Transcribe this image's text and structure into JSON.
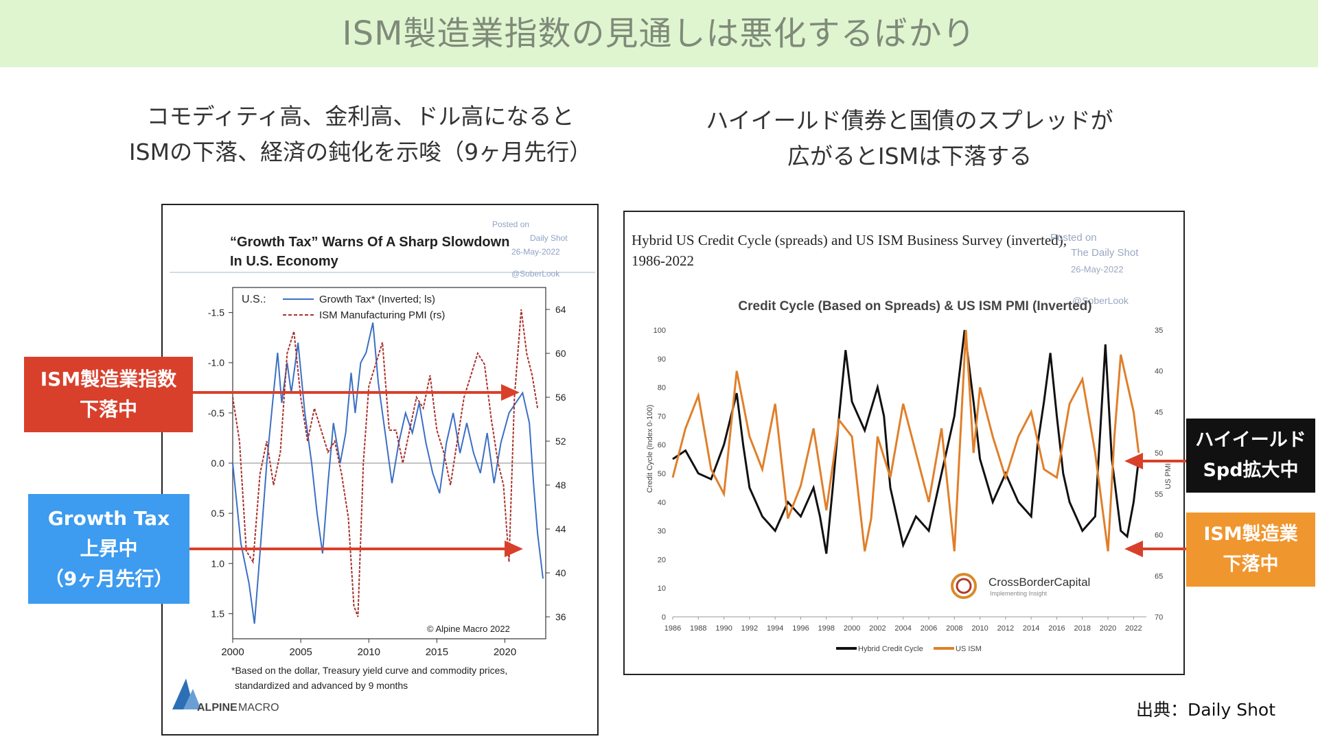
{
  "header": {
    "title": "ISM製造業指数の見通しは悪化するばかり"
  },
  "left_caption": {
    "line1": "コモディティ高、金利高、ドル高になると",
    "line2": "ISMの下落、経済の鈍化を示唆（9ヶ月先行）"
  },
  "right_caption": {
    "line1": "ハイイールド債券と国債のスプレッドが",
    "line2": "広がるとISMは下落する"
  },
  "callouts": {
    "ism_left": {
      "line1": "ISM製造業指数",
      "line2": "下落中",
      "color": "#d9402b"
    },
    "growth_tax": {
      "line1": "Growth Tax",
      "line2": "上昇中",
      "line3": "（9ヶ月先行）",
      "color": "#3d9bf0"
    },
    "high_yield": {
      "line1": "ハイイールド",
      "line2": "Spd拡大中",
      "color": "#111111"
    },
    "ism_right": {
      "line1": "ISM製造業",
      "line2": "下落中",
      "color": "#f0962e"
    },
    "arrow_color": "#d9402b"
  },
  "source": "出典：Daily Shot",
  "chart_data": [
    {
      "type": "line",
      "title": "“Growth Tax” Warns Of A Sharp Slowdown",
      "title_line2": "In U.S. Economy",
      "legend_prefix": "U.S.:",
      "watermark": {
        "line1": "Posted on",
        "line2": "Daily Shot",
        "line3": "26-May-2022",
        "line4": "@SoberLook"
      },
      "x": {
        "ticks": [
          2000,
          2005,
          2010,
          2015,
          2020
        ],
        "range": [
          2000,
          2023
        ]
      },
      "y_left": {
        "ticks": [
          "-1.5",
          "-1.0",
          "-0.5",
          "0.0",
          "0.5",
          "1.0",
          "1.5"
        ],
        "range": [
          -1.75,
          1.75
        ],
        "inverted": true
      },
      "y_right": {
        "ticks": [
          "64",
          "60",
          "56",
          "52",
          "48",
          "44",
          "40",
          "36"
        ],
        "range": [
          34,
          66
        ]
      },
      "series": [
        {
          "name": "Growth Tax* (Inverted; ls)",
          "axis": "left",
          "color": "#3a6fc4",
          "style": "solid",
          "points": [
            [
              2000,
              0.0
            ],
            [
              2000.6,
              0.8
            ],
            [
              2001.2,
              1.2
            ],
            [
              2001.6,
              1.6
            ],
            [
              2002.0,
              0.9
            ],
            [
              2002.5,
              0.0
            ],
            [
              2003.0,
              -0.7
            ],
            [
              2003.3,
              -1.1
            ],
            [
              2003.6,
              -0.6
            ],
            [
              2004.0,
              -1.0
            ],
            [
              2004.3,
              -0.7
            ],
            [
              2004.8,
              -1.2
            ],
            [
              2005.3,
              -0.5
            ],
            [
              2005.8,
              0.0
            ],
            [
              2006.2,
              0.5
            ],
            [
              2006.6,
              0.9
            ],
            [
              2007.0,
              0.2
            ],
            [
              2007.4,
              -0.4
            ],
            [
              2007.9,
              0.0
            ],
            [
              2008.3,
              -0.3
            ],
            [
              2008.7,
              -0.9
            ],
            [
              2009.0,
              -0.5
            ],
            [
              2009.4,
              -1.0
            ],
            [
              2009.8,
              -1.1
            ],
            [
              2010.3,
              -1.4
            ],
            [
              2010.7,
              -0.8
            ],
            [
              2011.2,
              -0.3
            ],
            [
              2011.7,
              0.2
            ],
            [
              2012.2,
              -0.2
            ],
            [
              2012.7,
              -0.5
            ],
            [
              2013.2,
              -0.3
            ],
            [
              2013.7,
              -0.6
            ],
            [
              2014.2,
              -0.2
            ],
            [
              2014.7,
              0.1
            ],
            [
              2015.2,
              0.3
            ],
            [
              2015.7,
              -0.2
            ],
            [
              2016.2,
              -0.5
            ],
            [
              2016.7,
              -0.1
            ],
            [
              2017.2,
              -0.4
            ],
            [
              2017.7,
              -0.1
            ],
            [
              2018.2,
              0.1
            ],
            [
              2018.7,
              -0.3
            ],
            [
              2019.2,
              0.2
            ],
            [
              2019.7,
              -0.2
            ],
            [
              2020.3,
              -0.5
            ],
            [
              2020.8,
              -0.6
            ],
            [
              2021.3,
              -0.7
            ],
            [
              2021.8,
              -0.4
            ],
            [
              2022.1,
              0.2
            ],
            [
              2022.4,
              0.7
            ],
            [
              2022.8,
              1.15
            ]
          ]
        },
        {
          "name": "ISM Manufacturing PMI (rs)",
          "axis": "right",
          "color": "#a8322d",
          "style": "dashed",
          "points": [
            [
              2000,
              56
            ],
            [
              2000.5,
              52
            ],
            [
              2001.0,
              42
            ],
            [
              2001.5,
              41
            ],
            [
              2002.0,
              49
            ],
            [
              2002.5,
              52
            ],
            [
              2003.0,
              48
            ],
            [
              2003.5,
              51
            ],
            [
              2004.0,
              60
            ],
            [
              2004.5,
              62
            ],
            [
              2005.0,
              56
            ],
            [
              2005.5,
              52
            ],
            [
              2006.0,
              55
            ],
            [
              2006.5,
              53
            ],
            [
              2007.0,
              51
            ],
            [
              2007.5,
              52
            ],
            [
              2008.0,
              49
            ],
            [
              2008.5,
              45
            ],
            [
              2008.9,
              37
            ],
            [
              2009.2,
              36
            ],
            [
              2009.6,
              50
            ],
            [
              2010.0,
              57
            ],
            [
              2010.5,
              59
            ],
            [
              2011.0,
              61
            ],
            [
              2011.5,
              53
            ],
            [
              2012.0,
              53
            ],
            [
              2012.5,
              50
            ],
            [
              2013.0,
              53
            ],
            [
              2013.5,
              56
            ],
            [
              2014.0,
              55
            ],
            [
              2014.5,
              58
            ],
            [
              2015.0,
              53
            ],
            [
              2015.5,
              51
            ],
            [
              2016.0,
              48
            ],
            [
              2016.5,
              52
            ],
            [
              2017.0,
              56
            ],
            [
              2017.5,
              58
            ],
            [
              2018.0,
              60
            ],
            [
              2018.5,
              59
            ],
            [
              2019.0,
              54
            ],
            [
              2019.5,
              50
            ],
            [
              2019.9,
              48
            ],
            [
              2020.3,
              41
            ],
            [
              2020.7,
              56
            ],
            [
              2021.2,
              64
            ],
            [
              2021.6,
              60
            ],
            [
              2022.0,
              58
            ],
            [
              2022.4,
              55
            ]
          ]
        }
      ],
      "annotation": "© Alpine Macro 2022",
      "footnote_line1": "*Based on the dollar, Treasury yield curve and commodity prices,",
      "footnote_line2": "standardized and advanced by 9 months",
      "logo": {
        "bold": "ALPINE",
        "rest": "MACRO"
      }
    },
    {
      "type": "line",
      "title": "Hybrid US Credit Cycle (spreads) and US ISM Business Survey (inverted),",
      "title_line2": "1986-2022",
      "subtitle": "Credit Cycle (Based on Spreads) & US ISM PMI (Inverted)",
      "watermark": {
        "line1": "Posted on",
        "line2": "The Daily Shot",
        "line3": "26-May-2022",
        "line4": "@SoberLook"
      },
      "ylabel": "Credit Cycle (Index 0-100)",
      "ylabel_right": "US PMI",
      "x": {
        "ticks": [
          "1986",
          "1988",
          "1990",
          "1992",
          "1994",
          "1996",
          "1998",
          "2000",
          "2002",
          "2004",
          "2006",
          "2008",
          "2010",
          "2012",
          "2014",
          "2016",
          "2018",
          "2020",
          "2022"
        ],
        "range": [
          1986,
          2023
        ]
      },
      "y_left": {
        "ticks": [
          "0",
          "10",
          "20",
          "30",
          "40",
          "50",
          "60",
          "70",
          "80",
          "90",
          "100"
        ],
        "range": [
          0,
          100
        ]
      },
      "y_right": {
        "ticks": [
          "35",
          "40",
          "45",
          "50",
          "55",
          "60",
          "65",
          "70"
        ],
        "range": [
          35,
          70
        ],
        "inverted": true
      },
      "series": [
        {
          "name": "Hybrid Credit Cycle",
          "axis": "left",
          "color": "#111111",
          "points": [
            [
              1986,
              55
            ],
            [
              1987,
              58
            ],
            [
              1988,
              50
            ],
            [
              1989,
              48
            ],
            [
              1990,
              60
            ],
            [
              1991,
              78
            ],
            [
              1991.5,
              60
            ],
            [
              1992,
              45
            ],
            [
              1993,
              35
            ],
            [
              1994,
              30
            ],
            [
              1995,
              40
            ],
            [
              1996,
              35
            ],
            [
              1997,
              45
            ],
            [
              1997.5,
              35
            ],
            [
              1998,
              22
            ],
            [
              1998.5,
              45
            ],
            [
              1999,
              70
            ],
            [
              1999.5,
              93
            ],
            [
              2000,
              75
            ],
            [
              2001,
              65
            ],
            [
              2002,
              80
            ],
            [
              2002.5,
              70
            ],
            [
              2003,
              45
            ],
            [
              2004,
              25
            ],
            [
              2005,
              35
            ],
            [
              2006,
              30
            ],
            [
              2007,
              50
            ],
            [
              2008,
              70
            ],
            [
              2008.8,
              100
            ],
            [
              2009.5,
              75
            ],
            [
              2010,
              55
            ],
            [
              2011,
              40
            ],
            [
              2012,
              50
            ],
            [
              2013,
              40
            ],
            [
              2014,
              35
            ],
            [
              2014.5,
              60
            ],
            [
              2015,
              75
            ],
            [
              2015.5,
              92
            ],
            [
              2016,
              70
            ],
            [
              2016.5,
              50
            ],
            [
              2017,
              40
            ],
            [
              2018,
              30
            ],
            [
              2019,
              35
            ],
            [
              2019.8,
              95
            ],
            [
              2020.3,
              55
            ],
            [
              2021,
              30
            ],
            [
              2021.5,
              28
            ],
            [
              2022,
              40
            ],
            [
              2022.4,
              55
            ]
          ]
        },
        {
          "name": "US ISM",
          "axis": "right",
          "color": "#e07f2a",
          "points": [
            [
              1986,
              53
            ],
            [
              1987,
              47
            ],
            [
              1988,
              43
            ],
            [
              1989,
              52
            ],
            [
              1990,
              55
            ],
            [
              1991,
              40
            ],
            [
              1991.5,
              44
            ],
            [
              1992,
              48
            ],
            [
              1993,
              52
            ],
            [
              1994,
              44
            ],
            [
              1995,
              58
            ],
            [
              1996,
              54
            ],
            [
              1997,
              47
            ],
            [
              1998,
              57
            ],
            [
              1999,
              46
            ],
            [
              2000,
              48
            ],
            [
              2001,
              62
            ],
            [
              2001.5,
              58
            ],
            [
              2002,
              48
            ],
            [
              2003,
              53
            ],
            [
              2004,
              44
            ],
            [
              2005,
              50
            ],
            [
              2006,
              56
            ],
            [
              2007,
              47
            ],
            [
              2008,
              62
            ],
            [
              2008.9,
              35
            ],
            [
              2009.5,
              50
            ],
            [
              2010,
              42
            ],
            [
              2011,
              48
            ],
            [
              2012,
              53
            ],
            [
              2013,
              48
            ],
            [
              2014,
              45
            ],
            [
              2015,
              52
            ],
            [
              2016,
              53
            ],
            [
              2017,
              44
            ],
            [
              2018,
              41
            ],
            [
              2019,
              50
            ],
            [
              2020,
              62
            ],
            [
              2020.5,
              48
            ],
            [
              2021,
              38
            ],
            [
              2022,
              45
            ],
            [
              2022.4,
              50
            ]
          ]
        }
      ],
      "logo": {
        "name": "CrossBorderCapital",
        "tagline": "Implementing Insight"
      }
    }
  ]
}
